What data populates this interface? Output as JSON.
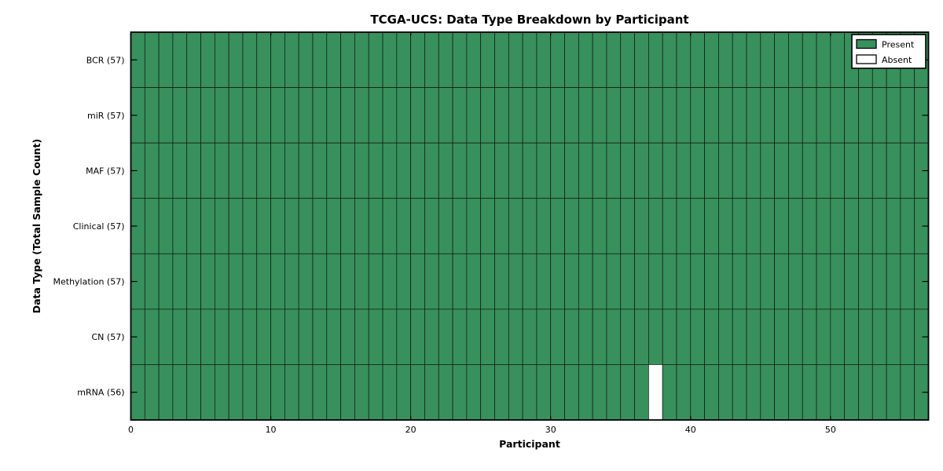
{
  "figure": {
    "background": "#ffffff"
  },
  "chart_data": {
    "type": "heatmap",
    "title": "TCGA-UCS: Data Type Breakdown by Participant",
    "xlabel": "Participant",
    "ylabel": "Data Type (Total Sample Count)",
    "x_tick_values": [
      0,
      10,
      20,
      30,
      40,
      50
    ],
    "x_range": [
      0,
      57
    ],
    "n_participants": 57,
    "rows": [
      {
        "label": "BCR (57)",
        "data_type": "BCR",
        "sample_count": 57,
        "absent_participants": []
      },
      {
        "label": "miR (57)",
        "data_type": "miR",
        "sample_count": 57,
        "absent_participants": []
      },
      {
        "label": "MAF (57)",
        "data_type": "MAF",
        "sample_count": 57,
        "absent_participants": []
      },
      {
        "label": "Clinical (57)",
        "data_type": "Clinical",
        "sample_count": 57,
        "absent_participants": []
      },
      {
        "label": "Methylation (57)",
        "data_type": "Methylation",
        "sample_count": 57,
        "absent_participants": []
      },
      {
        "label": "CN (57)",
        "data_type": "CN",
        "sample_count": 57,
        "absent_participants": []
      },
      {
        "label": "mRNA (56)",
        "data_type": "mRNA",
        "sample_count": 56,
        "absent_participants": [
          37
        ]
      }
    ],
    "legend": {
      "position": "upper right",
      "entries": [
        {
          "label": "Present",
          "color": "#38905c"
        },
        {
          "label": "Absent",
          "color": "#ffffff"
        }
      ]
    },
    "colors": {
      "present": "#38905c",
      "absent": "#ffffff",
      "cell_border": "#101510",
      "axis": "#000000"
    },
    "grid": true
  }
}
